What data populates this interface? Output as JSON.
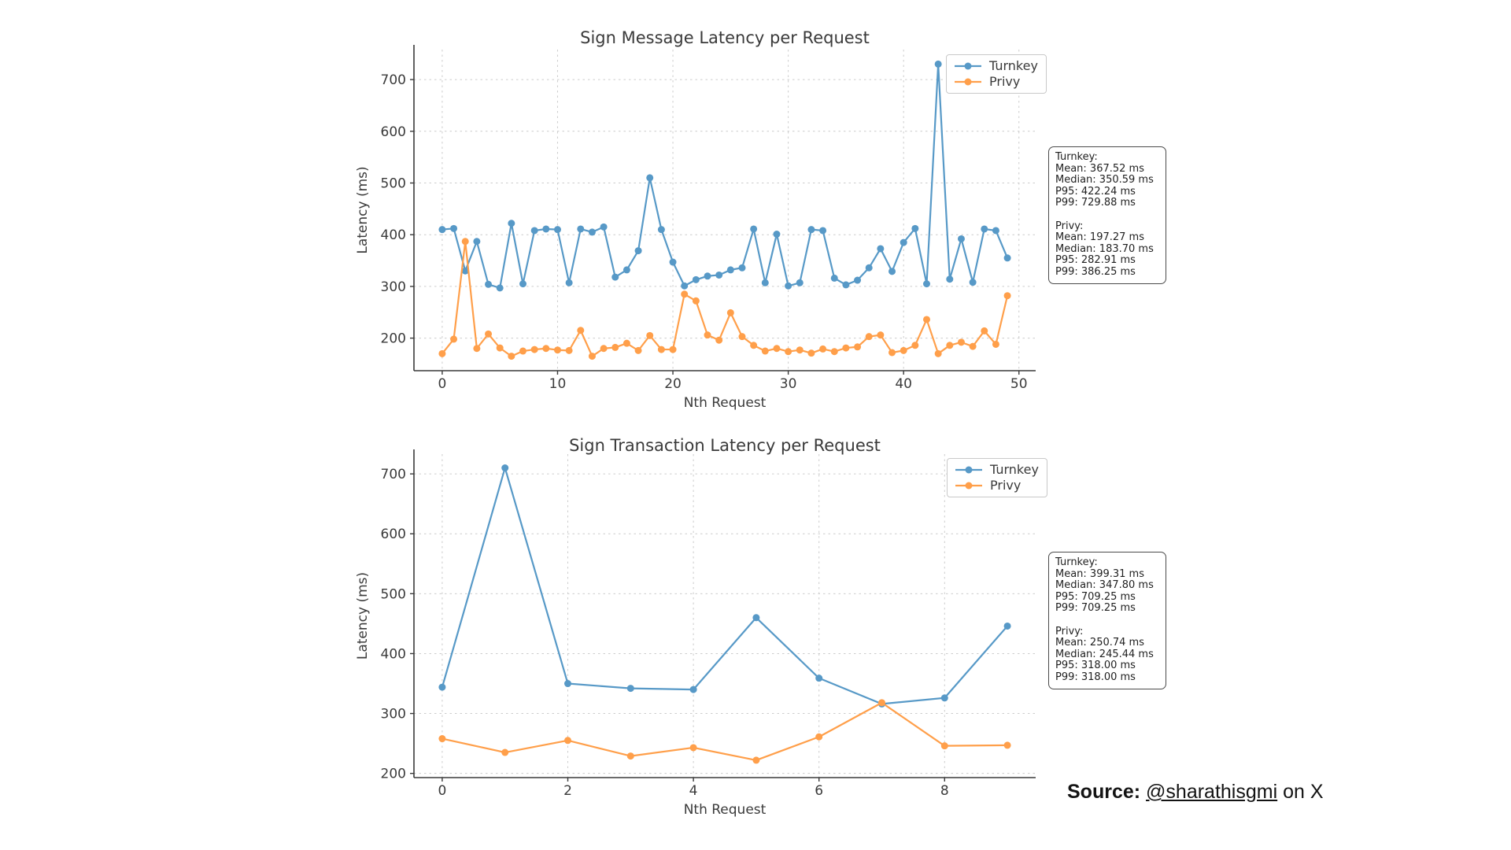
{
  "colors": {
    "turnkey": "#5799c7",
    "privy": "#ff9f4a",
    "grid": "#cccccc",
    "spine": "#3a3a3a",
    "text": "#3a3a3a",
    "stats_text": "#1f1f1f",
    "background": "#ffffff"
  },
  "source": {
    "label": "Source:",
    "link": "@sharathisgmi",
    "suffix": "on X"
  },
  "chart_data": [
    {
      "type": "line",
      "title": "Sign Message Latency per Request",
      "xlabel": "Nth Request",
      "ylabel": "Latency (ms)",
      "x_is_index": true,
      "x_ticks": [
        0,
        10,
        20,
        30,
        40,
        50
      ],
      "y_ticks": [
        200,
        300,
        400,
        500,
        600,
        700
      ],
      "xlim": [
        -2.45,
        51.45
      ],
      "ylim": [
        137,
        758
      ],
      "grid": true,
      "legend": {
        "position": "upper right",
        "entries": [
          "Turnkey",
          "Privy"
        ]
      },
      "series": [
        {
          "name": "Turnkey",
          "color": "#5799c7",
          "values": [
            410,
            412,
            330,
            387,
            304,
            297,
            422,
            305,
            408,
            411,
            410,
            307,
            411,
            405,
            415,
            318,
            332,
            369,
            510,
            410,
            347,
            301,
            313,
            320,
            322,
            332,
            336,
            411,
            307,
            401,
            301,
            307,
            410,
            408,
            316,
            303,
            312,
            336,
            373,
            329,
            385,
            412,
            305,
            730,
            314,
            392,
            308,
            411,
            408,
            355
          ]
        },
        {
          "name": "Privy",
          "color": "#ff9f4a",
          "values": [
            170,
            198,
            387,
            180,
            208,
            181,
            165,
            175,
            178,
            180,
            177,
            176,
            215,
            165,
            180,
            182,
            190,
            176,
            205,
            178,
            178,
            285,
            272,
            206,
            196,
            249,
            203,
            186,
            175,
            180,
            174,
            177,
            171,
            179,
            174,
            181,
            183,
            203,
            206,
            172,
            176,
            186,
            236,
            170,
            186,
            192,
            184,
            214,
            188,
            282
          ]
        }
      ],
      "stats_box": [
        "Turnkey:",
        "Mean: 367.52 ms",
        "Median: 350.59 ms",
        "P95: 422.24 ms",
        "P99: 729.88 ms",
        "",
        "Privy:",
        "Mean: 197.27 ms",
        "Median: 183.70 ms",
        "P95: 282.91 ms",
        "P99: 386.25 ms"
      ]
    },
    {
      "type": "line",
      "title": "Sign Transaction Latency per Request",
      "xlabel": "Nth Request",
      "ylabel": "Latency (ms)",
      "x_is_index": true,
      "x_ticks": [
        0,
        2,
        4,
        6,
        8
      ],
      "y_ticks": [
        200,
        300,
        400,
        500,
        600,
        700
      ],
      "xlim": [
        -0.45,
        9.45
      ],
      "ylim": [
        193,
        733
      ],
      "grid": true,
      "legend": {
        "position": "upper right",
        "entries": [
          "Turnkey",
          "Privy"
        ]
      },
      "series": [
        {
          "name": "Turnkey",
          "color": "#5799c7",
          "values": [
            344,
            710,
            350,
            342,
            340,
            460,
            359,
            316,
            326,
            446
          ]
        },
        {
          "name": "Privy",
          "color": "#ff9f4a",
          "values": [
            258,
            235,
            255,
            229,
            243,
            222,
            261,
            318,
            246,
            247
          ]
        }
      ],
      "stats_box": [
        "Turnkey:",
        "Mean: 399.31 ms",
        "Median: 347.80 ms",
        "P95: 709.25 ms",
        "P99: 709.25 ms",
        "",
        "Privy:",
        "Mean: 250.74 ms",
        "Median: 245.44 ms",
        "P95: 318.00 ms",
        "P99: 318.00 ms"
      ]
    }
  ]
}
